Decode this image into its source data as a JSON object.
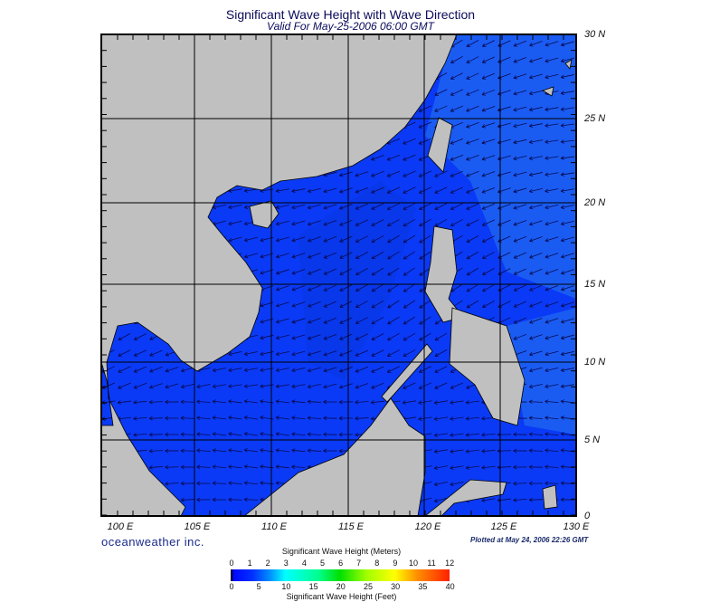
{
  "title": "Significant Wave Height with Wave Direction",
  "subtitle": "Valid For May-25-2006 06:00 GMT",
  "longitude_labels": [
    "100 E",
    "105 E",
    "110 E",
    "115 E",
    "120 E",
    "125 E",
    "130 E"
  ],
  "latitude_labels": [
    "30 N",
    "25 N",
    "20 N",
    "15 N",
    "10 N",
    "5 N",
    "0"
  ],
  "logo": "oceanweather inc.",
  "plotted": "Plotted at May 24, 2006 22:26 GMT",
  "colorbar": {
    "title_meters": "Significant Wave Height (Meters)",
    "ticks_meters": [
      "0",
      "1",
      "2",
      "3",
      "4",
      "5",
      "6",
      "7",
      "8",
      "9",
      "10",
      "11",
      "12"
    ],
    "ticks_feet": [
      "0",
      "5",
      "10",
      "15",
      "20",
      "25",
      "30",
      "35",
      "40"
    ],
    "title_feet": "Significant Wave Height (Feet)"
  },
  "colors": {
    "land": "#c0c0c0",
    "ocean": "#0a3af5",
    "ocean_light": "#1a60f0",
    "arrows": "#0a0a50"
  }
}
